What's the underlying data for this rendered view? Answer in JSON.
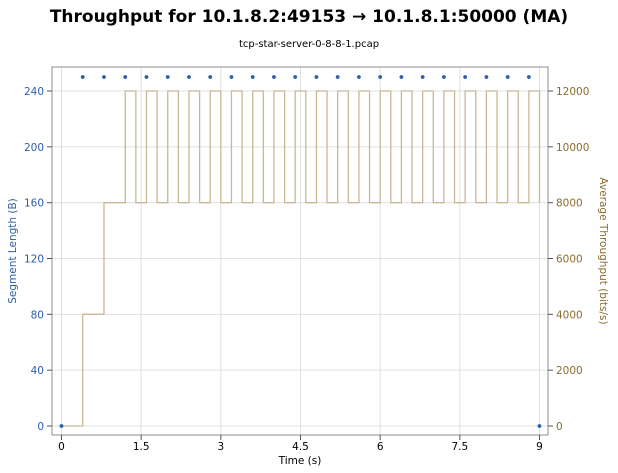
{
  "chart_data": {
    "type": "line",
    "title": "Throughput for 10.1.8.2:49153 → 10.1.8.1:50000 (MA)",
    "subtitle": "tcp-star-server-0-8-8-1.pcap",
    "xlabel": "Time (s)",
    "ylabel_left": "Segment Length (B)",
    "ylabel_right": "Average Throughput (bits/s)",
    "xlim": [
      0,
      9.0
    ],
    "ylim_left": [
      0,
      250
    ],
    "ylim_right": [
      0,
      12500
    ],
    "xticks": [
      "0",
      "1.5",
      "3",
      "4.5",
      "6",
      "7.5",
      "9"
    ],
    "xtick_values": [
      0,
      1.5,
      3,
      4.5,
      6,
      7.5,
      9
    ],
    "yticks_left": [
      "0",
      "40",
      "80",
      "120",
      "160",
      "200",
      "240"
    ],
    "ytick_values_left": [
      0,
      40,
      80,
      120,
      160,
      200,
      240
    ],
    "yticks_right": [
      "0",
      "2000",
      "4000",
      "6000",
      "8000",
      "10000",
      "12000"
    ],
    "ytick_values_right": [
      0,
      2000,
      4000,
      6000,
      8000,
      10000,
      12000
    ],
    "grid": true,
    "colors": {
      "segments": "#2e5ea8",
      "throughput": "#c9b896",
      "left_axis": "#2e5ea8",
      "right_axis": "#8a6d2e",
      "grid": "#e0e0e0"
    },
    "series": [
      {
        "name": "Segment Length",
        "axis": "left",
        "style": "points",
        "x": [
          0,
          0.4,
          0.8,
          1.2,
          1.6,
          2.0,
          2.4,
          2.8,
          3.2,
          3.6,
          4.0,
          4.4,
          4.8,
          5.2,
          5.6,
          6.0,
          6.4,
          6.8,
          7.2,
          7.6,
          8.0,
          8.4,
          8.8,
          9.0
        ],
        "y": [
          0,
          250,
          250,
          250,
          250,
          250,
          250,
          250,
          250,
          250,
          250,
          250,
          250,
          250,
          250,
          250,
          250,
          250,
          250,
          250,
          250,
          250,
          250,
          0
        ]
      },
      {
        "name": "Average Throughput",
        "axis": "right",
        "style": "step",
        "x": [
          0,
          0.4,
          0.8,
          1.2,
          1.4,
          1.6,
          1.8,
          2.0,
          2.2,
          2.4,
          2.6,
          2.8,
          3.0,
          3.2,
          3.4,
          3.6,
          3.8,
          4.0,
          4.2,
          4.4,
          4.6,
          4.8,
          5.0,
          5.2,
          5.4,
          5.6,
          5.8,
          6.0,
          6.2,
          6.4,
          6.6,
          6.8,
          7.0,
          7.2,
          7.4,
          7.6,
          7.8,
          8.0,
          8.2,
          8.4,
          8.6,
          8.8,
          9.0
        ],
        "y": [
          0,
          4000,
          8000,
          12000,
          8000,
          12000,
          8000,
          12000,
          8000,
          12000,
          8000,
          12000,
          8000,
          12000,
          8000,
          12000,
          8000,
          12000,
          8000,
          12000,
          8000,
          12000,
          8000,
          12000,
          8000,
          12000,
          8000,
          12000,
          8000,
          12000,
          8000,
          12000,
          8000,
          12000,
          8000,
          12000,
          8000,
          12000,
          8000,
          12000,
          8000,
          12000,
          8000
        ]
      }
    ]
  }
}
